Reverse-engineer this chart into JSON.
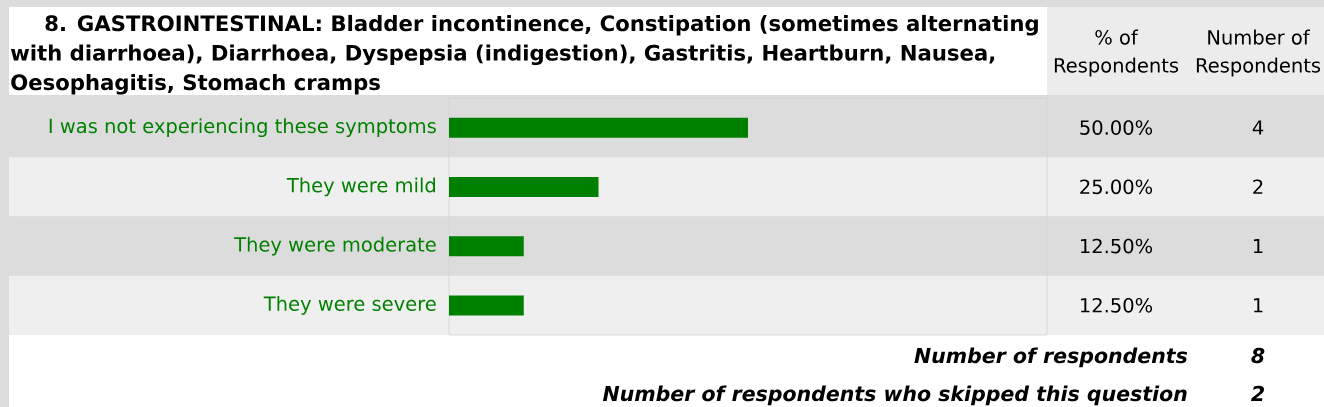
{
  "chart_data": {
    "type": "bar",
    "orientation": "horizontal",
    "title": "8. GASTROINTESTINAL: Bladder incontinence, Constipation (sometimes alternating with diarrhoea), Diarrhoea, Dyspepsia (indigestion), Gastritis, Heartburn, Nausea, Oesophagitis, Stomach cramps",
    "categories": [
      "I was not experiencing these symptoms",
      "They were mild",
      "They were moderate",
      "They were severe"
    ],
    "values": [
      50,
      25,
      12.5,
      12.5
    ],
    "color": "#008000",
    "xlim": [
      0,
      100
    ],
    "value_labels": [
      "50.00%",
      "25.00%",
      "12.50%",
      "12.50%"
    ],
    "annotations": [
      "% of Respondents",
      "Number of Respondents",
      "4",
      "2",
      "1",
      "1",
      "Number of respondents",
      "8",
      "Number of respondents who skipped this question",
      "2"
    ],
    "tick_labels": "y"
  }
}
